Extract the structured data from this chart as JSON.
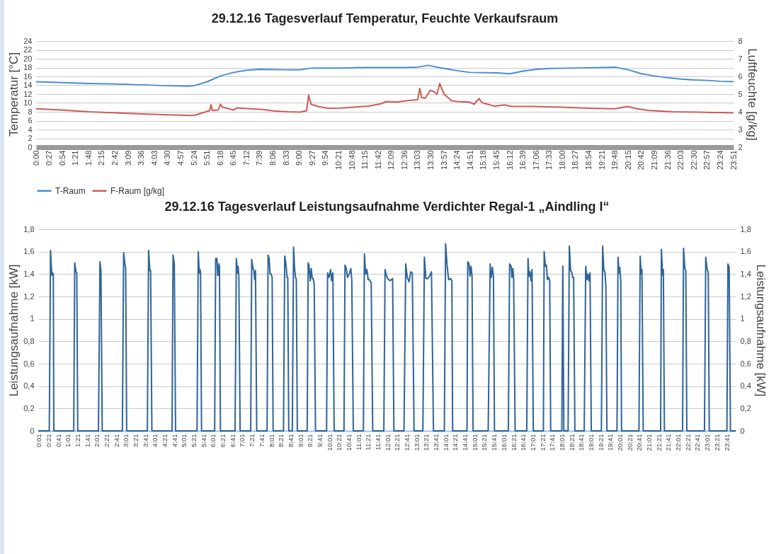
{
  "chart_data": [
    {
      "type": "line",
      "title": "29.12.16 Tagesverlauf Temperatur, Feuchte Verkaufsraum",
      "ylabel": "Temperatur [°C]",
      "y2label": "Luftfeuchte [g/kg]",
      "legend": "bottom",
      "grid": "y",
      "xlim": [
        0,
        23.85
      ],
      "xticks": [
        {
          "value": 0,
          "label": "0:00"
        },
        {
          "value": 0.45,
          "label": "0:27"
        },
        {
          "value": 0.9,
          "label": "0:54"
        },
        {
          "value": 1.35,
          "label": "1:21"
        },
        {
          "value": 1.8,
          "label": "1:48"
        },
        {
          "value": 2.25,
          "label": "2:15"
        },
        {
          "value": 2.7,
          "label": "2:42"
        },
        {
          "value": 3.15,
          "label": "3:09"
        },
        {
          "value": 3.6,
          "label": "3:36"
        },
        {
          "value": 4.05,
          "label": "4:03"
        },
        {
          "value": 4.5,
          "label": "4:30"
        },
        {
          "value": 4.95,
          "label": "4:57"
        },
        {
          "value": 5.4,
          "label": "5:24"
        },
        {
          "value": 5.85,
          "label": "5:51"
        },
        {
          "value": 6.3,
          "label": "6:18"
        },
        {
          "value": 6.75,
          "label": "6:45"
        },
        {
          "value": 7.2,
          "label": "7:12"
        },
        {
          "value": 7.65,
          "label": "7:39"
        },
        {
          "value": 8.1,
          "label": "8:06"
        },
        {
          "value": 8.55,
          "label": "8:33"
        },
        {
          "value": 9,
          "label": "9:00"
        },
        {
          "value": 9.45,
          "label": "9:27"
        },
        {
          "value": 9.9,
          "label": "9:54"
        },
        {
          "value": 10.35,
          "label": "10:21"
        },
        {
          "value": 10.8,
          "label": "10:48"
        },
        {
          "value": 11.25,
          "label": "11:15"
        },
        {
          "value": 11.7,
          "label": "11:42"
        },
        {
          "value": 12.15,
          "label": "12:09"
        },
        {
          "value": 12.6,
          "label": "12:36"
        },
        {
          "value": 13.05,
          "label": "13:03"
        },
        {
          "value": 13.5,
          "label": "13:30"
        },
        {
          "value": 13.95,
          "label": "13:57"
        },
        {
          "value": 14.4,
          "label": "14:24"
        },
        {
          "value": 14.85,
          "label": "14:51"
        },
        {
          "value": 15.3,
          "label": "15:18"
        },
        {
          "value": 15.75,
          "label": "15:45"
        },
        {
          "value": 16.2,
          "label": "16:12"
        },
        {
          "value": 16.65,
          "label": "16:39"
        },
        {
          "value": 17.1,
          "label": "17:06"
        },
        {
          "value": 17.55,
          "label": "17:33"
        },
        {
          "value": 18,
          "label": "18:00"
        },
        {
          "value": 18.45,
          "label": "18:27"
        },
        {
          "value": 18.9,
          "label": "18:54"
        },
        {
          "value": 19.35,
          "label": "19:21"
        },
        {
          "value": 19.8,
          "label": "19:48"
        },
        {
          "value": 20.25,
          "label": "20:15"
        },
        {
          "value": 20.7,
          "label": "20:42"
        },
        {
          "value": 21.15,
          "label": "21:09"
        },
        {
          "value": 21.6,
          "label": "21:36"
        },
        {
          "value": 22.05,
          "label": "22:03"
        },
        {
          "value": 22.5,
          "label": "22:30"
        },
        {
          "value": 22.95,
          "label": "22:57"
        },
        {
          "value": 23.4,
          "label": "23:24"
        },
        {
          "value": 23.85,
          "label": "23:51"
        }
      ],
      "ylim": [
        0,
        24
      ],
      "yticks": [
        0,
        2,
        4,
        6,
        8,
        10,
        12,
        14,
        16,
        18,
        20,
        22,
        24
      ],
      "y2lim": [
        2,
        8
      ],
      "y2ticks": [
        2,
        3,
        4,
        5,
        6,
        7,
        8
      ],
      "series": [
        {
          "name": "T-Raum",
          "color": "#4a8bd0",
          "x": [
            0,
            0.9,
            1.8,
            2.7,
            3.6,
            4.5,
            5.2,
            5.4,
            5.85,
            6.3,
            6.75,
            7.2,
            7.65,
            8.55,
            9,
            9.45,
            10.35,
            11.25,
            11.7,
            12.6,
            13.05,
            13.4,
            13.95,
            14.4,
            14.85,
            15.75,
            16.2,
            16.65,
            17.1,
            17.55,
            18.45,
            19.35,
            19.8,
            20.25,
            20.7,
            21.15,
            21.6,
            22.05,
            22.5,
            22.95,
            23.4,
            23.85
          ],
          "values": [
            14.8,
            14.6,
            14.4,
            14.3,
            14.1,
            13.9,
            13.8,
            13.9,
            14.8,
            16.1,
            16.9,
            17.4,
            17.6,
            17.5,
            17.5,
            17.9,
            17.9,
            18.0,
            18.0,
            18.0,
            18.1,
            18.5,
            17.8,
            17.3,
            16.9,
            16.8,
            16.6,
            17.2,
            17.6,
            17.8,
            17.9,
            18.0,
            18.1,
            17.5,
            16.6,
            16.1,
            15.7,
            15.4,
            15.2,
            15.1,
            14.9,
            14.8
          ]
        },
        {
          "name": "F-Raum [g/kg]",
          "color": "#d05a55",
          "axis": "y2",
          "x": [
            0,
            0.9,
            1.8,
            2.7,
            3.6,
            4.5,
            5.26,
            5.43,
            5.69,
            5.94,
            5.98,
            6.03,
            6.23,
            6.3,
            6.36,
            6.76,
            6.85,
            7.75,
            8.18,
            8.61,
            9.04,
            9.25,
            9.32,
            9.4,
            9.64,
            9.98,
            10.41,
            11.36,
            11.79,
            11.98,
            12.32,
            12.75,
            13.05,
            13.12,
            13.18,
            13.31,
            13.48,
            13.61,
            13.71,
            13.8,
            13.95,
            14.21,
            14.42,
            14.81,
            14.98,
            15.15,
            15.24,
            15.67,
            16.01,
            16.27,
            17.04,
            17.99,
            18.93,
            19.79,
            20.22,
            20.57,
            20.91,
            21.77,
            22.63,
            23.85
          ],
          "values": [
            4.17,
            4.1,
            4.0,
            3.94,
            3.88,
            3.83,
            3.79,
            3.81,
            3.94,
            4.07,
            4.4,
            4.07,
            4.1,
            4.43,
            4.27,
            4.1,
            4.22,
            4.13,
            4.04,
            4.0,
            3.98,
            4.07,
            4.94,
            4.43,
            4.3,
            4.2,
            4.21,
            4.32,
            4.45,
            4.58,
            4.55,
            4.64,
            4.68,
            5.32,
            4.81,
            4.77,
            5.22,
            5.13,
            5.0,
            5.6,
            5.0,
            4.62,
            4.58,
            4.55,
            4.43,
            4.75,
            4.52,
            4.32,
            4.39,
            4.3,
            4.3,
            4.26,
            4.2,
            4.17,
            4.3,
            4.17,
            4.08,
            4.0,
            3.98,
            3.94
          ]
        }
      ]
    },
    {
      "type": "line",
      "title": "29.12.16 Tagesverlauf Leistungsaufnahme Verdichter Regal-1 „Aindling I“",
      "ylabel": "Leistungsaufnahme [kW]",
      "y2label": "Leistungsaufnahme [kW]",
      "grid": "y",
      "xlim": [
        0,
        24
      ],
      "xticks": [
        {
          "value": 0.0167,
          "label": "0:01"
        },
        {
          "value": 0.35,
          "label": "0:21"
        },
        {
          "value": 0.6833,
          "label": "0:41"
        },
        {
          "value": 1.0167,
          "label": "1:01"
        },
        {
          "value": 1.35,
          "label": "1:21"
        },
        {
          "value": 1.6833,
          "label": "1:41"
        },
        {
          "value": 2.0167,
          "label": "2:01"
        },
        {
          "value": 2.35,
          "label": "2:21"
        },
        {
          "value": 2.6833,
          "label": "2:41"
        },
        {
          "value": 3.0167,
          "label": "3:01"
        },
        {
          "value": 3.35,
          "label": "3:21"
        },
        {
          "value": 3.6833,
          "label": "3:41"
        },
        {
          "value": 4.0167,
          "label": "4:01"
        },
        {
          "value": 4.35,
          "label": "4:21"
        },
        {
          "value": 4.6833,
          "label": "4:41"
        },
        {
          "value": 5.0167,
          "label": "5:01"
        },
        {
          "value": 5.35,
          "label": "5:21"
        },
        {
          "value": 5.6833,
          "label": "5:41"
        },
        {
          "value": 6.0167,
          "label": "6:01"
        },
        {
          "value": 6.35,
          "label": "6:21"
        },
        {
          "value": 6.6833,
          "label": "6:41"
        },
        {
          "value": 7.0167,
          "label": "7:01"
        },
        {
          "value": 7.35,
          "label": "7:21"
        },
        {
          "value": 7.6833,
          "label": "7:41"
        },
        {
          "value": 8.0167,
          "label": "8:01"
        },
        {
          "value": 8.35,
          "label": "8:21"
        },
        {
          "value": 8.6833,
          "label": "8:41"
        },
        {
          "value": 9.0167,
          "label": "9:01"
        },
        {
          "value": 9.35,
          "label": "9:21"
        },
        {
          "value": 9.6833,
          "label": "9:41"
        },
        {
          "value": 10.0167,
          "label": "10:01"
        },
        {
          "value": 10.35,
          "label": "10:21"
        },
        {
          "value": 10.6833,
          "label": "10:41"
        },
        {
          "value": 11.0167,
          "label": "11:01"
        },
        {
          "value": 11.35,
          "label": "11:21"
        },
        {
          "value": 11.6833,
          "label": "11:41"
        },
        {
          "value": 12.0167,
          "label": "12:01"
        },
        {
          "value": 12.35,
          "label": "12:21"
        },
        {
          "value": 12.6833,
          "label": "12:41"
        },
        {
          "value": 13.0167,
          "label": "13:01"
        },
        {
          "value": 13.35,
          "label": "13:21"
        },
        {
          "value": 13.6833,
          "label": "13:41"
        },
        {
          "value": 14.0167,
          "label": "14:01"
        },
        {
          "value": 14.35,
          "label": "14:21"
        },
        {
          "value": 14.6833,
          "label": "14:41"
        },
        {
          "value": 15.0167,
          "label": "15:01"
        },
        {
          "value": 15.35,
          "label": "15:21"
        },
        {
          "value": 15.6833,
          "label": "15:41"
        },
        {
          "value": 16.0167,
          "label": "16:01"
        },
        {
          "value": 16.35,
          "label": "16:21"
        },
        {
          "value": 16.6833,
          "label": "16:41"
        },
        {
          "value": 17.0167,
          "label": "17:01"
        },
        {
          "value": 17.35,
          "label": "17:21"
        },
        {
          "value": 17.6833,
          "label": "17:41"
        },
        {
          "value": 18.0167,
          "label": "18:01"
        },
        {
          "value": 18.35,
          "label": "18:21"
        },
        {
          "value": 18.6833,
          "label": "18:41"
        },
        {
          "value": 19.0167,
          "label": "19:01"
        },
        {
          "value": 19.35,
          "label": "19:21"
        },
        {
          "value": 19.6833,
          "label": "19:41"
        },
        {
          "value": 20.0167,
          "label": "20:01"
        },
        {
          "value": 20.35,
          "label": "20:21"
        },
        {
          "value": 20.6833,
          "label": "20:41"
        },
        {
          "value": 21.0167,
          "label": "21:01"
        },
        {
          "value": 21.35,
          "label": "21:21"
        },
        {
          "value": 21.6833,
          "label": "21:41"
        },
        {
          "value": 22.0167,
          "label": "22:01"
        },
        {
          "value": 22.35,
          "label": "22:21"
        },
        {
          "value": 22.6833,
          "label": "22:41"
        },
        {
          "value": 23.0167,
          "label": "23:01"
        },
        {
          "value": 23.35,
          "label": "23:21"
        },
        {
          "value": 23.6833,
          "label": "23:41"
        }
      ],
      "ylim": [
        0,
        1.8
      ],
      "yticks": [
        0,
        {
          "value": 0.2,
          "label": "0,2"
        },
        {
          "value": 0.4,
          "label": "0,4"
        },
        {
          "value": 0.6,
          "label": "0,6"
        },
        {
          "value": 0.8,
          "label": "0,8"
        },
        1,
        {
          "value": 1.2,
          "label": "1,2"
        },
        {
          "value": 1.4,
          "label": "1,4"
        },
        {
          "value": 1.6,
          "label": "1,6"
        },
        {
          "value": 1.8,
          "label": "1,8"
        }
      ],
      "y2lim": [
        0,
        1.8
      ],
      "y2ticks": [
        0,
        {
          "value": 0.2,
          "label": "0,2"
        },
        {
          "value": 0.4,
          "label": "0,4"
        },
        {
          "value": 0.6,
          "label": "0,6"
        },
        {
          "value": 0.8,
          "label": "0,8"
        },
        1,
        {
          "value": 1.2,
          "label": "1,2"
        },
        {
          "value": 1.4,
          "label": "1,4"
        },
        {
          "value": 1.6,
          "label": "1,6"
        },
        {
          "value": 1.8,
          "label": "1,8"
        }
      ],
      "x": [
        0,
        0.38,
        0.423,
        0.467,
        0.493,
        0.519,
        0.536,
        1.221,
        1.256,
        1.3,
        1.326,
        1.36,
        2.072,
        2.124,
        2.158,
        2.202,
        2.896,
        2.939,
        2.982,
        3.009,
        3.043,
        3.755,
        3.798,
        3.841,
        3.867,
        3.911,
        4.605,
        4.639,
        4.683,
        4.726,
        5.464,
        5.507,
        5.542,
        5.568,
        5.585,
        5.62,
        6.071,
        6.105,
        6.149,
        6.175,
        6.192,
        6.218,
        6.236,
        6.27,
        6.773,
        6.817,
        6.852,
        6.878,
        6.904,
        6.947,
        7.311,
        7.346,
        7.389,
        7.415,
        7.45,
        7.476,
        7.519,
        7.875,
        7.91,
        7.945,
        7.979,
        8.014,
        8.049,
        8.083,
        8.439,
        8.482,
        8.526,
        8.56,
        8.587,
        8.621,
        8.743,
        8.786,
        8.821,
        8.855,
        8.881,
        8.916,
        9.255,
        9.289,
        9.315,
        9.359,
        9.393,
        9.428,
        9.463,
        9.497,
        9.541,
        9.922,
        9.957,
        10.009,
        10.061,
        10.096,
        10.139,
        10.183,
        10.521,
        10.556,
        10.599,
        10.642,
        10.703,
        10.755,
        10.79,
        10.842,
        11.189,
        11.224,
        11.267,
        11.31,
        11.354,
        11.397,
        11.458,
        11.51,
        11.892,
        11.935,
        11.978,
        12.022,
        12.109,
        12.195,
        12.239,
        12.586,
        12.646,
        12.698,
        12.759,
        12.82,
        12.872,
        12.933,
        13.236,
        13.288,
        13.34,
        13.41,
        13.479,
        13.531,
        13.601,
        13.974,
        14.017,
        14.069,
        14.121,
        14.191,
        14.234,
        14.26,
        14.754,
        14.78,
        14.824,
        14.859,
        14.893,
        14.928,
        14.963,
        15.483,
        15.552,
        15.587,
        15.631,
        15.665,
        15.7,
        16.177,
        16.22,
        16.273,
        16.299,
        16.333,
        16.359,
        16.411,
        16.81,
        16.854,
        16.888,
        16.923,
        16.958,
        16.992,
        17.036,
        17.383,
        17.409,
        17.452,
        17.487,
        17.522,
        17.565,
        17.6,
        17.634,
        18.016,
        18.051,
        18.086,
        18.233,
        18.276,
        18.32,
        18.355,
        18.389,
        18.424,
        18.467,
        18.788,
        18.84,
        18.884,
        18.918,
        18.953,
        18.988,
        19.031,
        19.378,
        19.422,
        19.465,
        19.5,
        19.534,
        19.569,
        19.916,
        19.951,
        19.985,
        20.011,
        20.046,
        20.072,
        20.671,
        20.714,
        20.749,
        20.775,
        20.818,
        21.417,
        21.443,
        21.486,
        21.512,
        21.547,
        22.172,
        22.206,
        22.25,
        22.284,
        22.319,
        22.926,
        22.97,
        23.013,
        23.056,
        23.091,
        23.698,
        23.733,
        23.776,
        23.82,
        24
      ],
      "series": [
        {
          "color": "#2f6499",
          "values": [
            0,
            0,
            1.61,
            1.39,
            1.41,
            1.4,
            0,
            0,
            1.5,
            1.42,
            1.41,
            0,
            0,
            1.51,
            1.43,
            0,
            0,
            1.59,
            1.49,
            1.45,
            0,
            0,
            1.61,
            1.43,
            1.43,
            0,
            0,
            1.57,
            1.49,
            0,
            0,
            1.6,
            1.41,
            1.44,
            1.41,
            0,
            0,
            1.54,
            1.54,
            1.39,
            1.39,
            1.49,
            1.47,
            0,
            0,
            1.54,
            1.41,
            1.47,
            1.37,
            0,
            0,
            1.53,
            1.45,
            1.44,
            1.35,
            1.43,
            0,
            0,
            1.57,
            1.54,
            1.4,
            1.4,
            1.37,
            0,
            0,
            1.56,
            1.49,
            1.37,
            1.37,
            0,
            0,
            1.64,
            1.45,
            1.37,
            1.35,
            0,
            0,
            1.5,
            1.48,
            1.34,
            1.45,
            1.36,
            1.36,
            1.3,
            0,
            0,
            1.41,
            1.37,
            1.44,
            1.34,
            1.41,
            0,
            0,
            1.48,
            1.45,
            1.37,
            1.4,
            1.45,
            1.35,
            0,
            0,
            1.58,
            1.4,
            1.44,
            1.35,
            1.35,
            1.32,
            0,
            0,
            1.44,
            1.39,
            1.36,
            1.34,
            1.36,
            0,
            0,
            1.49,
            1.37,
            1.33,
            1.42,
            1.41,
            0,
            0,
            1.55,
            1.36,
            1.36,
            1.39,
            1.42,
            0,
            0,
            1.67,
            1.48,
            1.35,
            1.36,
            1.34,
            0,
            0,
            1.51,
            1.49,
            1.38,
            1.47,
            1.38,
            0,
            0,
            1.49,
            1.37,
            1.46,
            1.37,
            0,
            0,
            1.49,
            1.47,
            1.37,
            1.45,
            1.36,
            0,
            0,
            1.54,
            1.38,
            1.42,
            1.34,
            1.44,
            0,
            0,
            1.6,
            1.47,
            1.48,
            1.35,
            1.37,
            1.34,
            0,
            0,
            1.47,
            0,
            0,
            1.65,
            1.43,
            1.42,
            1.37,
            1.37,
            0,
            0,
            1.47,
            1.35,
            1.4,
            1.34,
            1.41,
            0,
            0,
            1.65,
            1.43,
            1.42,
            1.28,
            0,
            0,
            1.55,
            1.41,
            1.46,
            1.34,
            0,
            0,
            1.56,
            1.4,
            1.44,
            0,
            0,
            1.62,
            1.39,
            1.44,
            0,
            0,
            1.63,
            1.45,
            1.43,
            0,
            0,
            1.55,
            1.45,
            1.41,
            0,
            0,
            1.49,
            1.46,
            0,
            0
          ]
        }
      ]
    }
  ]
}
